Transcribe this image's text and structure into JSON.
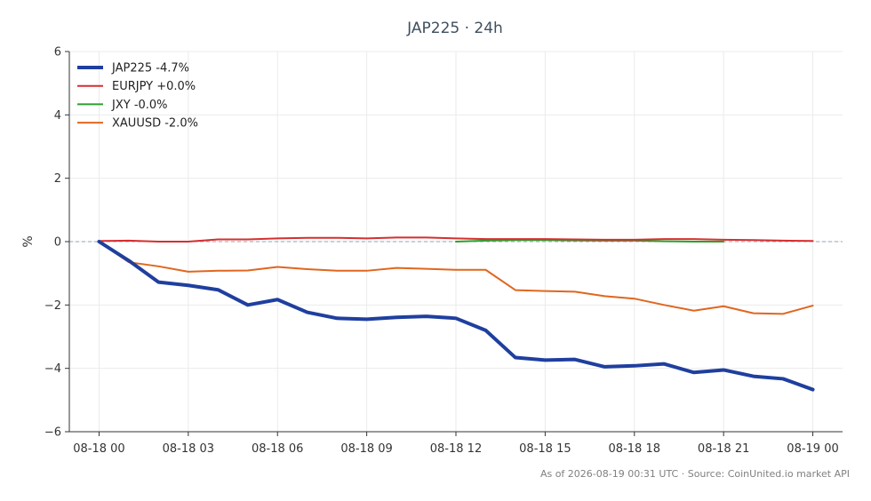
{
  "chart_data": {
    "type": "line",
    "title": "JAP225 · 24h",
    "xlabel": "",
    "ylabel": "%",
    "ylim": [
      -6,
      6
    ],
    "yticks": [
      6,
      4,
      2,
      0,
      -2,
      -4,
      -6
    ],
    "ytick_labels": [
      "6",
      "4",
      "2",
      "0",
      "−2",
      "−4",
      "−6"
    ],
    "xlim": [
      -1,
      25
    ],
    "xticks": [
      0,
      3,
      6,
      9,
      12,
      15,
      18,
      21,
      24
    ],
    "xtick_labels": [
      "08-18 00",
      "08-18 03",
      "08-18 06",
      "08-18 09",
      "08-18 12",
      "08-18 15",
      "08-18 18",
      "08-18 21",
      "08-19 00"
    ],
    "grid": true,
    "zero_line": true,
    "legend_position": "top-left",
    "series": [
      {
        "name": "JAP225 -4.7%",
        "color": "#1f3f9f",
        "width": 4,
        "x": [
          0,
          1,
          2,
          3,
          4,
          5,
          6,
          7,
          8,
          9,
          10,
          11,
          12,
          13,
          14,
          15,
          16,
          17,
          18,
          19,
          20,
          21,
          22,
          23,
          24
        ],
        "y": [
          0,
          -0.6,
          -1.28,
          -1.38,
          -1.52,
          -2.0,
          -1.83,
          -2.23,
          -2.42,
          -2.45,
          -2.39,
          -2.36,
          -2.42,
          -2.8,
          -3.66,
          -3.74,
          -3.72,
          -3.95,
          -3.92,
          -3.86,
          -4.13,
          -4.05,
          -4.25,
          -4.33,
          -4.67
        ]
      },
      {
        "name": "EURJPY +0.0%",
        "color": "#d62f2f",
        "width": 2,
        "x": [
          0,
          1,
          2,
          3,
          4,
          5,
          6,
          7,
          8,
          9,
          10,
          11,
          12,
          13,
          14,
          15,
          16,
          17,
          18,
          19,
          20,
          21,
          22,
          23,
          24
        ],
        "y": [
          0.02,
          0.03,
          0.0,
          0.0,
          0.07,
          0.07,
          0.1,
          0.12,
          0.12,
          0.1,
          0.13,
          0.13,
          0.1,
          0.08,
          0.08,
          0.08,
          0.07,
          0.06,
          0.06,
          0.08,
          0.08,
          0.06,
          0.05,
          0.03,
          0.02
        ]
      },
      {
        "name": "JXY -0.0%",
        "color": "#2ca02c",
        "width": 2,
        "x": [
          12,
          13,
          14,
          15,
          16,
          17,
          18,
          19,
          20,
          21
        ],
        "y": [
          0.0,
          0.03,
          0.05,
          0.05,
          0.04,
          0.03,
          0.03,
          0.01,
          0.0,
          0.0
        ]
      },
      {
        "name": "XAUUSD -2.0%",
        "color": "#e0661f",
        "width": 2,
        "x": [
          0,
          1,
          2,
          3,
          4,
          5,
          6,
          7,
          8,
          9,
          10,
          11,
          12,
          13,
          14,
          15,
          16,
          17,
          18,
          19,
          20,
          21,
          22,
          23,
          24
        ],
        "y": [
          0,
          -0.65,
          -0.78,
          -0.95,
          -0.92,
          -0.91,
          -0.8,
          -0.87,
          -0.92,
          -0.92,
          -0.83,
          -0.86,
          -0.89,
          -0.89,
          -1.53,
          -1.56,
          -1.58,
          -1.72,
          -1.8,
          -2.0,
          -2.18,
          -2.04,
          -2.26,
          -2.28,
          -2.02
        ]
      }
    ]
  },
  "footer": {
    "text": "As of 2026-08-19 00:31 UTC · Source: CoinUnited.io market API"
  },
  "colors": {
    "grid": "#ebebeb",
    "axis": "#333333",
    "zero_line": "#8fa3b8"
  }
}
